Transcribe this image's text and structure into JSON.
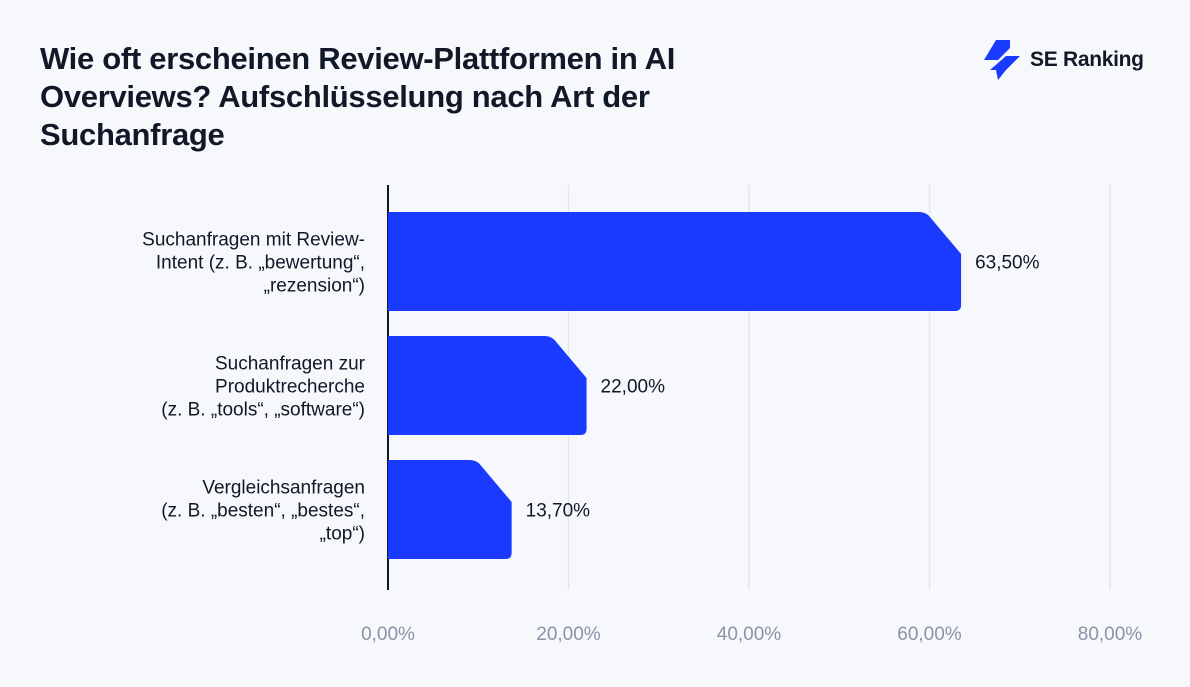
{
  "title": "Wie oft erscheinen Review-Plattformen in AI Overviews? Aufschlüsselung nach Art der Suchanfrage",
  "logo": {
    "text": "SE Ranking",
    "icon": "se-ranking-bolt-icon"
  },
  "colors": {
    "bar": "#1a3bff",
    "background": "#f6f8fc",
    "grid": "#e2e5ee",
    "axis": "#111827"
  },
  "chart_data": {
    "type": "bar",
    "orientation": "horizontal",
    "title": "Wie oft erscheinen Review-Plattformen in AI Overviews? Aufschlüsselung nach Art der Suchanfrage",
    "categories": [
      [
        "Suchanfragen mit Review-",
        "Intent (z. B. „bewertung“,",
        "„rezension“)"
      ],
      [
        "Suchanfragen zur",
        "Produktrecherche",
        "(z. B. „tools“, „software“)"
      ],
      [
        "Vergleichsanfragen",
        "(z. B. „besten“, „bestes“,",
        "„top“)"
      ]
    ],
    "values": [
      63.5,
      22.0,
      13.7
    ],
    "value_labels": [
      "63,50%",
      "22,00%",
      "13,70%"
    ],
    "xlim": [
      0,
      80
    ],
    "ticks": [
      0,
      20,
      40,
      60,
      80
    ],
    "tick_labels": [
      "0,00%",
      "20,00%",
      "40,00%",
      "60,00%",
      "80,00%"
    ],
    "grid": true,
    "legend": "none"
  }
}
